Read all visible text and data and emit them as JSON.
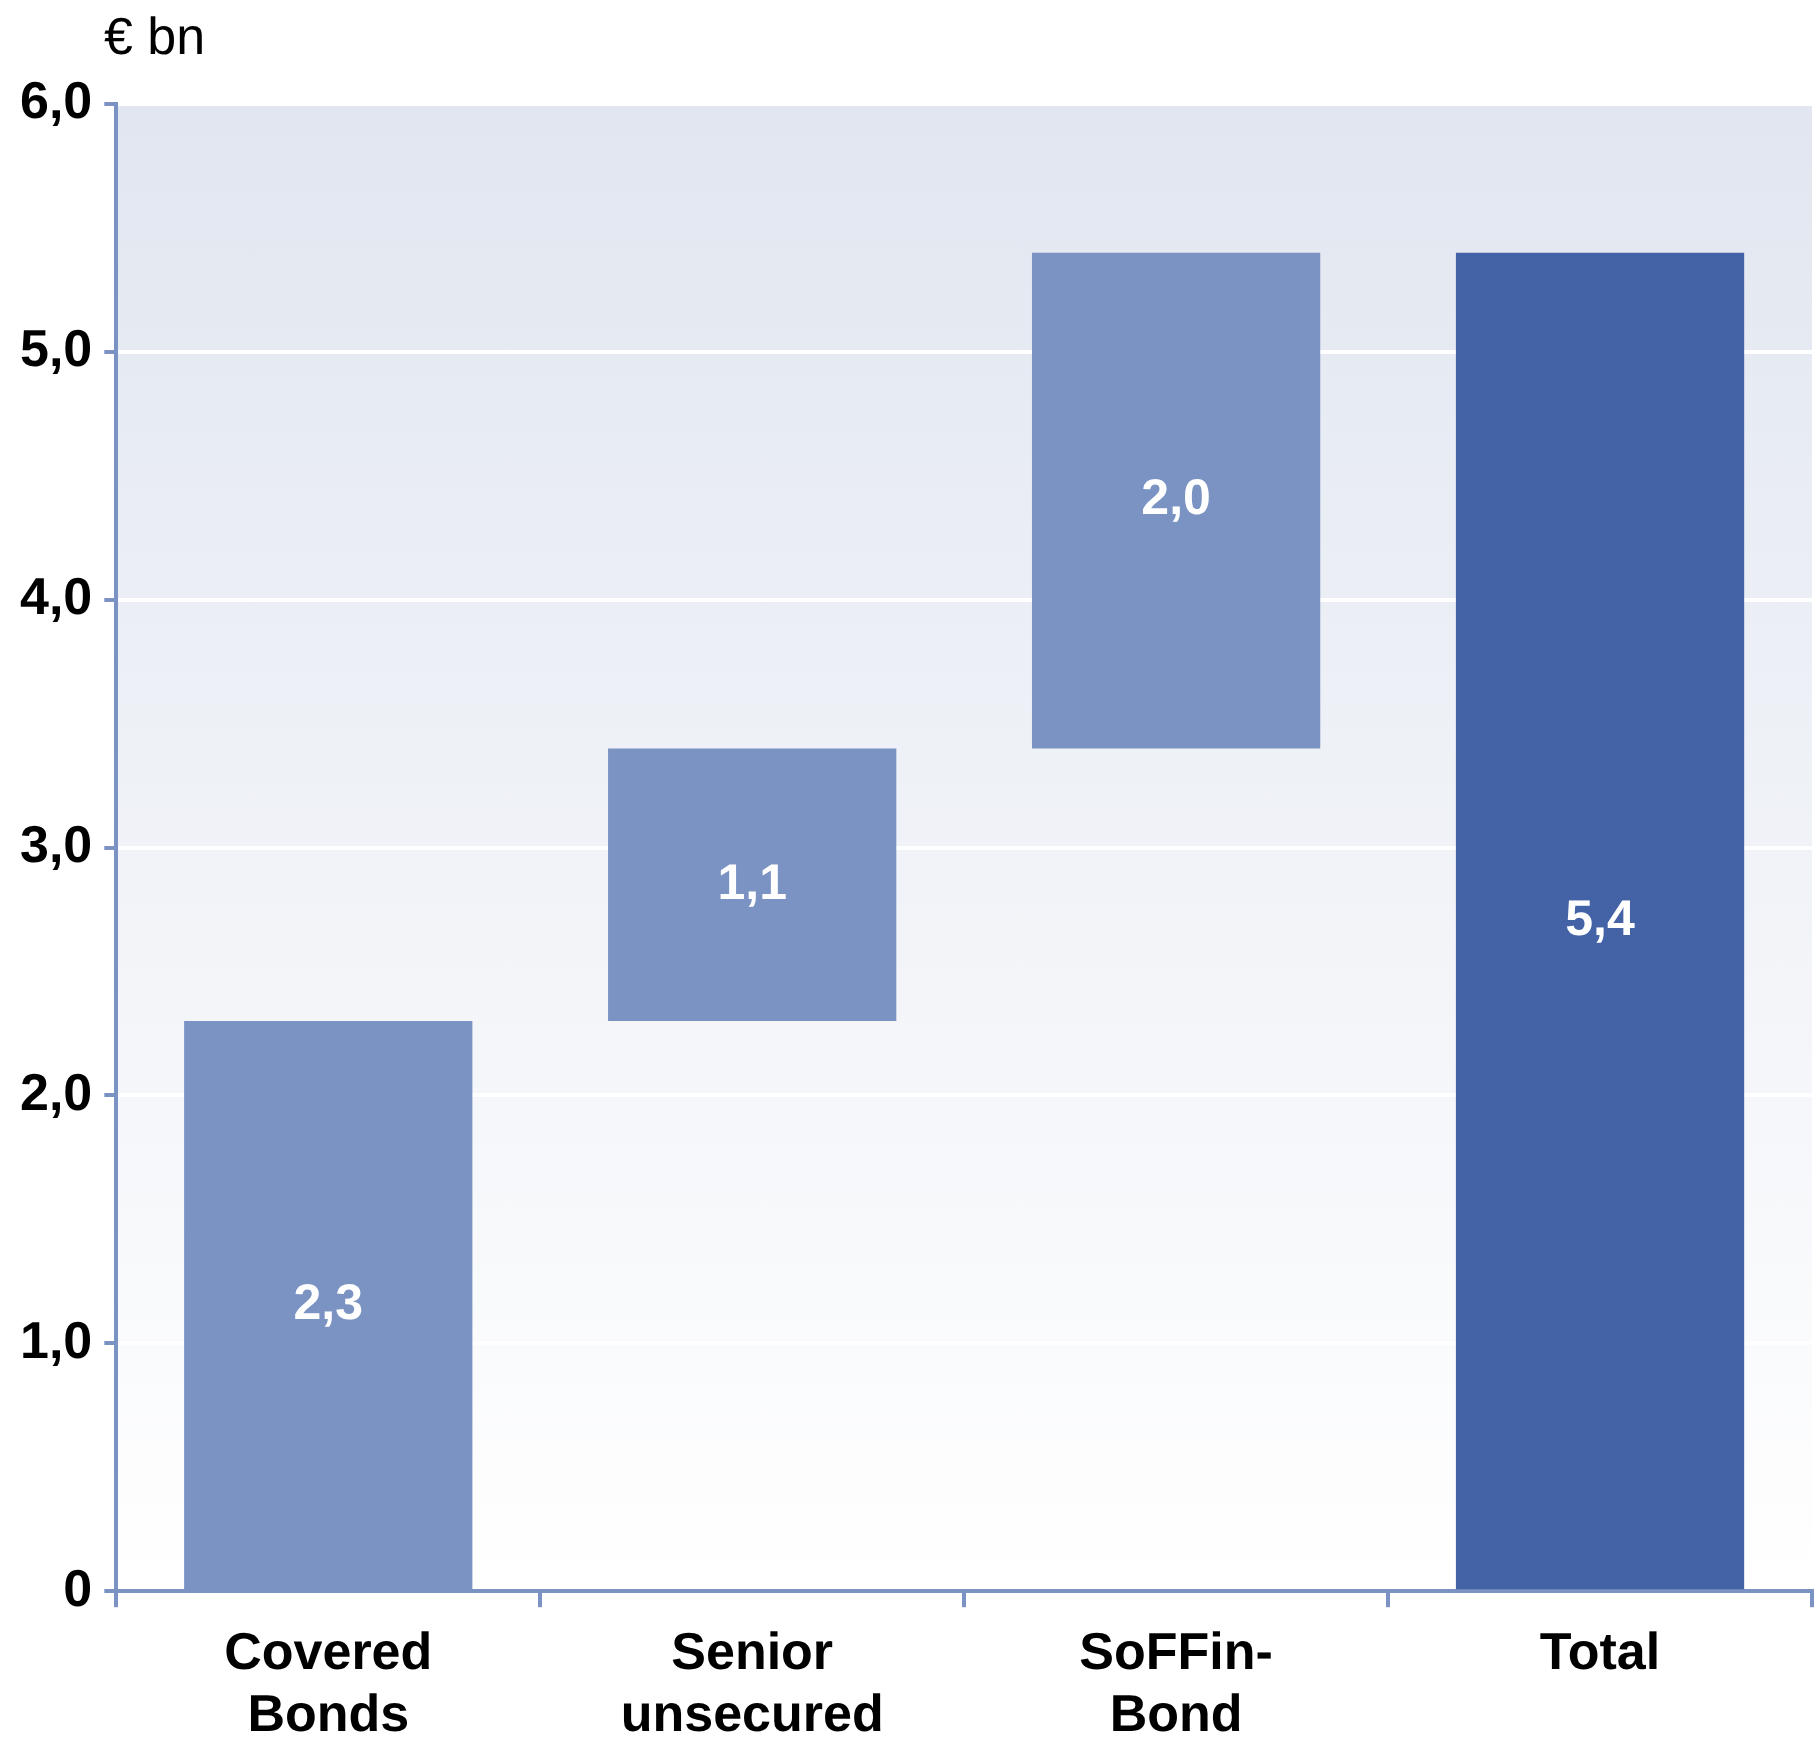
{
  "chart_data": {
    "type": "bar",
    "ylabel": "€ bn",
    "categories": [
      "Covered Bonds",
      "Senior unsecured",
      "SoFFin-Bond",
      "Total"
    ],
    "values": [
      2.3,
      1.1,
      2.0,
      5.4
    ],
    "base": [
      0,
      2.3,
      3.4,
      0
    ],
    "colors": [
      "#7b93c2",
      "#7b93c2",
      "#7b93c2",
      "#4463a6"
    ],
    "value_labels": [
      "2,3",
      "1,1",
      "2,0",
      "5,4"
    ],
    "ylim": [
      0,
      6
    ],
    "yticks": [
      {
        "value": 0,
        "label": "0"
      },
      {
        "value": 1,
        "label": "1,0"
      },
      {
        "value": 2,
        "label": "2,0"
      },
      {
        "value": 3,
        "label": "3,0"
      },
      {
        "value": 4,
        "label": "4,0"
      },
      {
        "value": 5,
        "label": "5,0"
      },
      {
        "value": 6,
        "label": "6,0"
      }
    ],
    "grid": "y",
    "legend": false
  }
}
